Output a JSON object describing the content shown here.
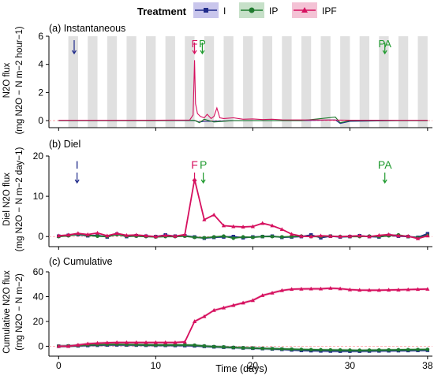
{
  "legend": {
    "title": "Treatment",
    "items": [
      {
        "label": "I",
        "color": "#1f2a8a",
        "marker": "square",
        "fill": "#c9c6ec"
      },
      {
        "label": "IP",
        "color": "#1f7a2e",
        "marker": "circle",
        "fill": "#c6e0c8"
      },
      {
        "label": "IPF",
        "color": "#d6105f",
        "marker": "triangle",
        "fill": "#f4c2d5"
      }
    ]
  },
  "x_axis": {
    "label": "Time (days)",
    "ticks": [
      0,
      10,
      20,
      30,
      38
    ]
  },
  "chart_data": [
    {
      "type": "line",
      "panel_label": "(a) Instantaneous",
      "ylabel_line1": "N2O flux",
      "ylabel_line2": "(mg N2O − N m−2 hour−1)",
      "xlim": [
        -1,
        38.5
      ],
      "ylim": [
        -0.5,
        6
      ],
      "yticks": [
        0,
        2,
        4,
        6
      ],
      "background_bands": "alternating grey vertical bands",
      "annotations": [
        {
          "text": "I",
          "x": 1.6,
          "color": "#1f2a8a"
        },
        {
          "text": "F",
          "x": 14.0,
          "color": "#d6105f"
        },
        {
          "text": "P",
          "x": 14.8,
          "color": "#1f9a2e"
        },
        {
          "text": "PA",
          "x": 33.6,
          "color": "#1f9a2e"
        }
      ],
      "series": [
        {
          "name": "IPF",
          "x": [
            0,
            5,
            10,
            13.5,
            13.85,
            14.0,
            14.1,
            14.3,
            14.6,
            15.0,
            15.3,
            15.7,
            16.0,
            16.3,
            16.6,
            17.0,
            18.0,
            19.0,
            20.0,
            21.0,
            22.0,
            23.0,
            25.0,
            28.0,
            30.0,
            35.0,
            38.0
          ],
          "y": [
            0.02,
            0.02,
            0.03,
            0.04,
            0.4,
            4.3,
            1.2,
            0.5,
            0.3,
            0.2,
            0.45,
            0.15,
            0.3,
            0.9,
            0.2,
            0.15,
            0.2,
            0.1,
            0.12,
            0.08,
            0.1,
            0.06,
            0.05,
            0.04,
            0.03,
            0.02,
            0.02
          ]
        },
        {
          "name": "IP",
          "x": [
            0,
            5,
            10,
            14.0,
            14.5,
            15.0,
            16.0,
            18.0,
            20.0,
            25.0,
            28.5,
            29.0,
            30.0,
            35.0,
            38.0
          ],
          "y": [
            0.0,
            0.0,
            0.0,
            0.02,
            -0.15,
            0.1,
            -0.1,
            0.0,
            0.0,
            0.0,
            0.25,
            -0.15,
            0.0,
            0.0,
            0.0
          ]
        },
        {
          "name": "I",
          "x": [
            0,
            5,
            10,
            14.0,
            14.5,
            15.0,
            16.0,
            18.0,
            20.0,
            25.0,
            28.5,
            29.0,
            30.0,
            35.0,
            38.0
          ],
          "y": [
            0.0,
            0.0,
            0.0,
            0.0,
            -0.1,
            -0.05,
            -0.05,
            0.0,
            0.0,
            0.0,
            0.05,
            -0.2,
            -0.05,
            0.0,
            0.0
          ]
        }
      ]
    },
    {
      "type": "line",
      "panel_label": "(b) Diel",
      "ylabel_line1": "Diel N2O flux",
      "ylabel_line2": "(mg N2O − N m−2 day−1)",
      "xlim": [
        -1,
        38.5
      ],
      "ylim": [
        -2.5,
        20
      ],
      "yticks": [
        0,
        10,
        20
      ],
      "annotations": [
        {
          "text": "I",
          "x": 1.9,
          "color": "#1f2a8a"
        },
        {
          "text": "F",
          "x": 14.0,
          "color": "#d6105f"
        },
        {
          "text": "P",
          "x": 14.9,
          "color": "#1f9a2e"
        },
        {
          "text": "PA",
          "x": 33.6,
          "color": "#1f9a2e"
        }
      ],
      "series": [
        {
          "name": "IPF",
          "x": [
            0,
            1,
            2,
            3,
            4,
            5,
            6,
            7,
            8,
            9,
            10,
            11,
            12,
            13,
            14,
            15,
            16,
            17,
            18,
            19,
            20,
            21,
            22,
            23,
            24,
            25,
            26,
            27,
            28,
            29,
            30,
            31,
            32,
            33,
            34,
            35,
            36,
            37,
            38
          ],
          "y": [
            0.2,
            0.4,
            0.8,
            0.5,
            0.9,
            0.2,
            0.8,
            0.3,
            0.4,
            0.2,
            0.0,
            0.3,
            0.1,
            0.5,
            14.2,
            4.2,
            5.4,
            2.7,
            2.5,
            2.4,
            2.5,
            3.3,
            2.7,
            1.8,
            0.6,
            0.1,
            0.0,
            0.2,
            0.1,
            0.0,
            0.1,
            0.2,
            0.0,
            0.3,
            0.5,
            0.2,
            0.1,
            -0.5,
            0.2
          ]
        },
        {
          "name": "IP",
          "x": [
            0,
            1,
            2,
            3,
            4,
            5,
            6,
            7,
            8,
            9,
            10,
            11,
            12,
            13,
            14,
            15,
            16,
            17,
            18,
            19,
            20,
            21,
            22,
            23,
            24,
            25,
            26,
            27,
            28,
            29,
            30,
            31,
            32,
            33,
            34,
            35,
            36,
            37,
            38
          ],
          "y": [
            0.0,
            0.2,
            0.6,
            0.3,
            0.1,
            0.0,
            0.5,
            0.1,
            0.1,
            0.0,
            -0.1,
            0.0,
            0.0,
            0.1,
            -0.2,
            -0.3,
            -0.1,
            0.1,
            -0.4,
            -0.1,
            -0.2,
            0.0,
            0.0,
            -0.1,
            0.0,
            0.1,
            0.0,
            0.0,
            0.1,
            0.0,
            0.0,
            0.0,
            0.1,
            0.0,
            0.2,
            0.4,
            0.0,
            -0.3,
            0.3
          ]
        },
        {
          "name": "I",
          "x": [
            0,
            1,
            2,
            3,
            4,
            5,
            6,
            7,
            8,
            9,
            10,
            11,
            12,
            13,
            14,
            15,
            16,
            17,
            18,
            19,
            20,
            21,
            22,
            23,
            24,
            25,
            26,
            27,
            28,
            29,
            30,
            31,
            32,
            33,
            34,
            35,
            36,
            37,
            38
          ],
          "y": [
            0.1,
            0.3,
            0.5,
            0.2,
            0.3,
            -0.1,
            0.6,
            0.0,
            0.2,
            0.1,
            0.0,
            0.4,
            0.1,
            0.2,
            -0.1,
            -0.4,
            -0.2,
            -0.1,
            0.0,
            -0.3,
            -0.1,
            0.0,
            0.1,
            -0.2,
            -0.1,
            0.0,
            0.4,
            -0.3,
            0.1,
            -0.1,
            0.0,
            0.2,
            0.0,
            -0.1,
            0.3,
            0.1,
            0.0,
            -0.2,
            0.7
          ]
        }
      ]
    },
    {
      "type": "line",
      "panel_label": "(c) Cumulative",
      "ylabel_line1": "Cumulative N2O flux",
      "ylabel_line2": "(mg N2O − N m−2)",
      "xlim": [
        -1,
        38.5
      ],
      "ylim": [
        -8,
        60
      ],
      "yticks": [
        0,
        20,
        40,
        60
      ],
      "series": [
        {
          "name": "IPF",
          "x": [
            0,
            1,
            2,
            3,
            4,
            5,
            6,
            7,
            8,
            9,
            10,
            11,
            12,
            13,
            14,
            15,
            16,
            17,
            18,
            19,
            20,
            21,
            22,
            23,
            24,
            25,
            26,
            27,
            28,
            29,
            30,
            31,
            32,
            33,
            34,
            35,
            36,
            37,
            38
          ],
          "y": [
            0,
            0,
            1,
            2,
            2.5,
            2.8,
            3,
            3,
            3,
            3,
            3,
            3,
            3,
            3.5,
            20,
            24,
            29,
            31,
            33,
            35,
            37,
            41,
            43,
            45,
            46,
            46.2,
            46.3,
            46.3,
            46.8,
            46.4,
            45.6,
            45.3,
            45.2,
            45.2,
            45.4,
            45.5,
            45.7,
            45.9,
            46.1
          ]
        },
        {
          "name": "IP",
          "x": [
            0,
            1,
            2,
            3,
            4,
            5,
            6,
            7,
            8,
            9,
            10,
            11,
            12,
            13,
            14,
            15,
            16,
            17,
            18,
            19,
            20,
            21,
            22,
            23,
            24,
            25,
            26,
            27,
            28,
            29,
            30,
            31,
            32,
            33,
            34,
            35,
            36,
            37,
            38
          ],
          "y": [
            0,
            0.2,
            0.5,
            1,
            1.2,
            1.4,
            1.5,
            1.3,
            1.2,
            1.1,
            1,
            1,
            1,
            1,
            0.8,
            0.2,
            -0.3,
            -0.6,
            -1,
            -1.3,
            -1.5,
            -1.8,
            -2,
            -2.2,
            -2.4,
            -2.6,
            -2.8,
            -2.9,
            -3,
            -3.1,
            -3.2,
            -3.3,
            -3.2,
            -3.1,
            -3,
            -2.9,
            -2.8,
            -2.7,
            -2.6
          ]
        },
        {
          "name": "I",
          "x": [
            0,
            1,
            2,
            3,
            4,
            5,
            6,
            7,
            8,
            9,
            10,
            11,
            12,
            13,
            14,
            15,
            16,
            17,
            18,
            19,
            20,
            21,
            22,
            23,
            24,
            25,
            26,
            27,
            28,
            29,
            30,
            31,
            32,
            33,
            34,
            35,
            36,
            37,
            38
          ],
          "y": [
            0,
            0.1,
            0.3,
            0.6,
            0.8,
            1,
            1.1,
            1,
            0.9,
            0.8,
            0.7,
            0.7,
            0.6,
            0.5,
            0.3,
            -0.1,
            -0.5,
            -0.8,
            -1.1,
            -1.4,
            -1.6,
            -1.9,
            -2.2,
            -2.5,
            -3,
            -3.4,
            -3.6,
            -3.8,
            -3.9,
            -4,
            -4,
            -4,
            -3.9,
            -3.8,
            -3.7,
            -3.6,
            -3.5,
            -3.4,
            -3.3
          ]
        }
      ]
    }
  ]
}
